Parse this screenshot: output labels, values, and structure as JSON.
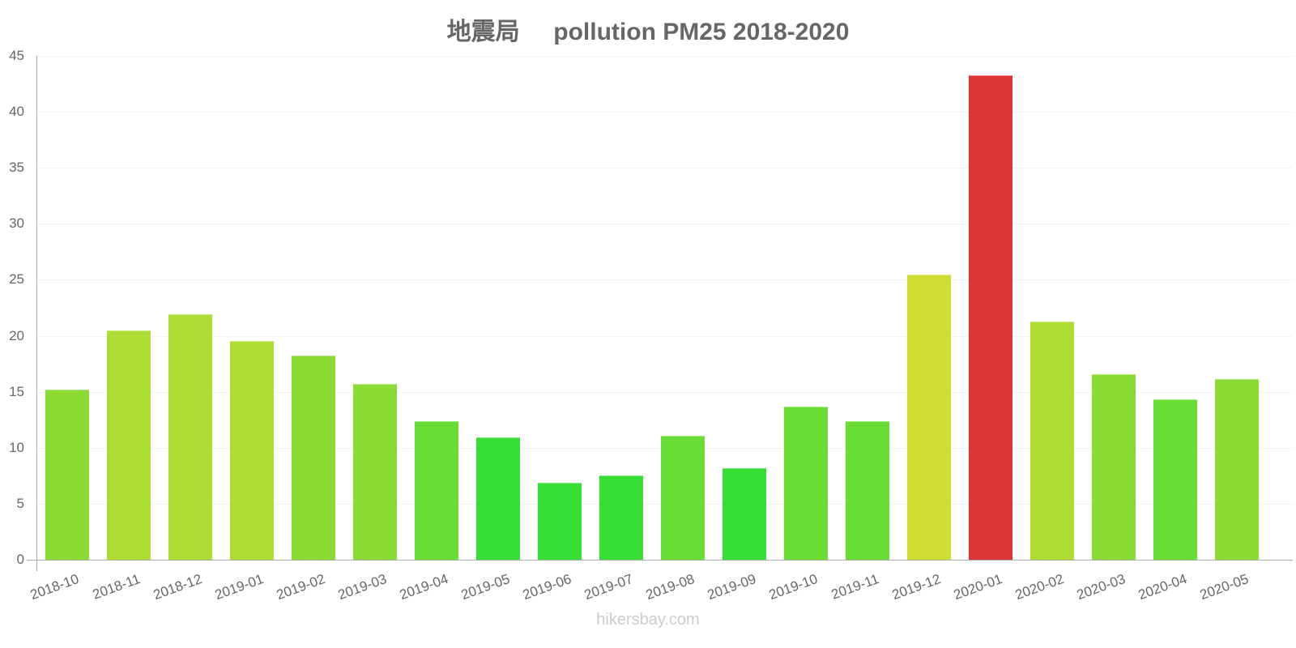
{
  "title": "地震局     pollution PM25 2018-2020",
  "watermark": "hikersbay.com",
  "chart_data": {
    "type": "bar",
    "title": "地震局     pollution PM25 2018-2020",
    "xlabel": "",
    "ylabel": "",
    "ylim": [
      0,
      45
    ],
    "yticks": [
      0,
      5,
      10,
      15,
      20,
      25,
      30,
      35,
      40,
      45
    ],
    "grid": true,
    "legend": null,
    "categories": [
      "2018-10",
      "2018-11",
      "2018-12",
      "2019-01",
      "2019-02",
      "2019-03",
      "2019-04",
      "2019-05",
      "2019-06",
      "2019-07",
      "2019-08",
      "2019-09",
      "2019-10",
      "2019-11",
      "2019-12",
      "2020-01",
      "2020-02",
      "2020-03",
      "2020-04",
      "2020-05"
    ],
    "values": [
      15.2,
      20.5,
      21.9,
      19.5,
      18.2,
      15.7,
      12.4,
      10.9,
      6.9,
      7.5,
      11.1,
      8.2,
      13.7,
      12.4,
      25.5,
      43.3,
      21.3,
      16.6,
      14.3,
      16.1
    ],
    "colors": [
      "#8bdb35",
      "#addd35",
      "#addd35",
      "#addd35",
      "#8bdb35",
      "#8bdb35",
      "#6add35",
      "#35dd35",
      "#35dd35",
      "#35dd35",
      "#6add35",
      "#35dd35",
      "#6add35",
      "#6add35",
      "#cfdd35",
      "#dd3535",
      "#addd35",
      "#8bdb35",
      "#6add35",
      "#8bdb35"
    ]
  }
}
